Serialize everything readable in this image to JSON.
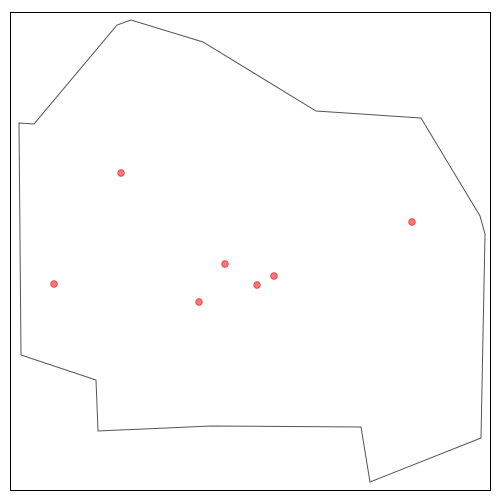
{
  "map": {
    "colors": {
      "background": "#ffffff",
      "frame_stroke": "#000000",
      "boundary_stroke": "#555555",
      "point_fill": "#ff6666",
      "point_stroke": "#e03b3b"
    },
    "boundary_shape": "irregular-polygon",
    "point_count": 7,
    "marker_shape": "circle"
  }
}
